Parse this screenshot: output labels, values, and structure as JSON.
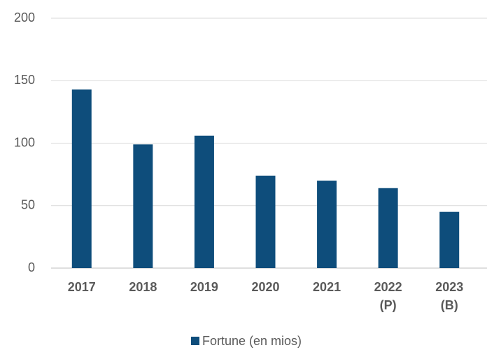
{
  "chart_data": {
    "type": "bar",
    "categories": [
      "2017",
      "2018",
      "2019",
      "2020",
      "2021",
      "2022 (P)",
      "2023 (B)"
    ],
    "series": [
      {
        "name": "Fortune (en mios)",
        "color": "#0e4d7b",
        "values": [
          143,
          99,
          106,
          74,
          70,
          64,
          45
        ]
      }
    ],
    "ylim": [
      0,
      200
    ],
    "yticks": [
      0,
      50,
      100,
      150,
      200
    ],
    "grid": true,
    "legend": "bottom"
  }
}
